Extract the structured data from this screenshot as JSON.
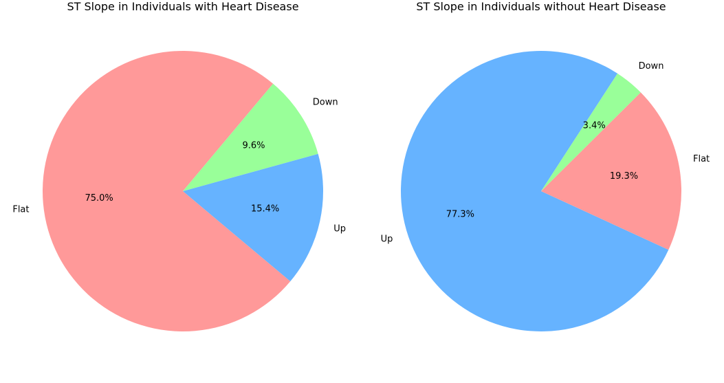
{
  "chart_data": [
    {
      "type": "pie",
      "title": "ST Slope in Individuals with Heart Disease",
      "slices": [
        {
          "label": "Flat",
          "value": 75.0,
          "pct_text": "75.0%",
          "color": "#ff9999"
        },
        {
          "label": "Up",
          "value": 15.4,
          "pct_text": "15.4%",
          "color": "#66b3ff"
        },
        {
          "label": "Down",
          "value": 9.6,
          "pct_text": "9.6%",
          "color": "#99ff99"
        }
      ]
    },
    {
      "type": "pie",
      "title": "ST Slope in Individuals without Heart Disease",
      "slices": [
        {
          "label": "Up",
          "value": 77.3,
          "pct_text": "77.3%",
          "color": "#66b3ff"
        },
        {
          "label": "Flat",
          "value": 19.3,
          "pct_text": "19.3%",
          "color": "#ff9999"
        },
        {
          "label": "Down",
          "value": 3.4,
          "pct_text": "3.4%",
          "color": "#99ff99"
        }
      ]
    }
  ]
}
